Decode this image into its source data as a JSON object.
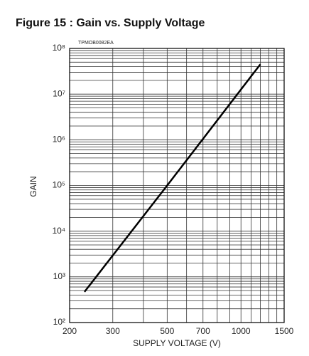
{
  "chart_data": {
    "type": "line",
    "title": "Figure 15 : Gain vs. Supply Voltage",
    "annotation": "TPMOB0082EA",
    "x_label": "SUPPLY VOLTAGE (V)",
    "y_label": "GAIN",
    "x_scale": "log",
    "y_scale": "log",
    "grid": true,
    "xlim": [
      200,
      1500
    ],
    "xticks": [
      200,
      300,
      500,
      700,
      1000,
      1500
    ],
    "minor_xticks": [
      400,
      600,
      800,
      900,
      1100,
      1200,
      1300,
      1400
    ],
    "ylim": [
      100,
      100000000
    ],
    "yticks": [
      {
        "value": 100,
        "label": "10²"
      },
      {
        "value": 1000,
        "label": "10³"
      },
      {
        "value": 10000,
        "label": "10⁴"
      },
      {
        "value": 100000,
        "label": "10⁵"
      },
      {
        "value": 1000000,
        "label": "10⁶"
      },
      {
        "value": 10000000,
        "label": "10⁷"
      },
      {
        "value": 100000000,
        "label": "10⁸"
      }
    ],
    "minor_yticks": [
      200,
      300,
      400,
      500,
      600,
      700,
      800,
      900,
      2000,
      3000,
      4000,
      5000,
      6000,
      7000,
      8000,
      9000,
      20000,
      30000,
      40000,
      50000,
      60000,
      70000,
      80000,
      90000,
      200000,
      300000,
      400000,
      500000,
      600000,
      700000,
      800000,
      900000,
      2000000,
      3000000,
      4000000,
      5000000,
      6000000,
      7000000,
      8000000,
      9000000,
      20000000,
      30000000,
      40000000,
      50000000,
      60000000,
      70000000,
      80000000,
      90000000
    ],
    "series": [
      {
        "color": "#000000",
        "x": [
          230,
          500,
          1200
        ],
        "values": [
          470,
          100000,
          45000000
        ]
      }
    ]
  }
}
